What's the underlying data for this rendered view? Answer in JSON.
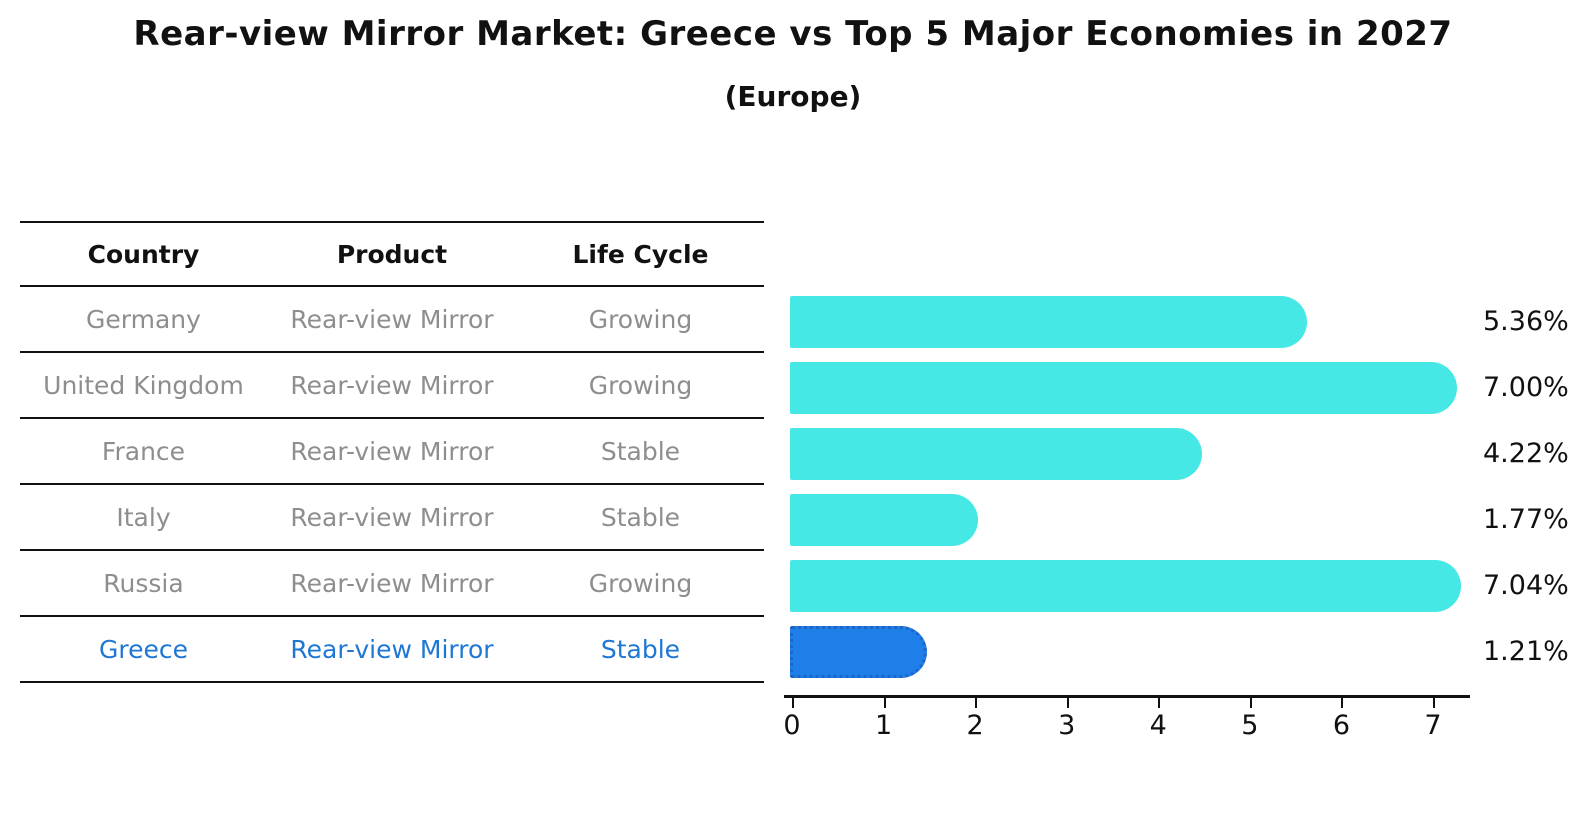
{
  "title": "Rear-view Mirror Market: Greece vs Top 5 Major Economies in 2027",
  "subtitle": "(Europe)",
  "table": {
    "headers": [
      "Country",
      "Product",
      "Life Cycle"
    ],
    "rows": [
      {
        "country": "Germany",
        "product": "Rear-view Mirror",
        "life_cycle": "Growing",
        "highlight": false
      },
      {
        "country": "United Kingdom",
        "product": "Rear-view Mirror",
        "life_cycle": "Growing",
        "highlight": false
      },
      {
        "country": "France",
        "product": "Rear-view Mirror",
        "life_cycle": "Stable",
        "highlight": false
      },
      {
        "country": "Italy",
        "product": "Rear-view Mirror",
        "life_cycle": "Stable",
        "highlight": false
      },
      {
        "country": "Russia",
        "product": "Rear-view Mirror",
        "life_cycle": "Growing",
        "highlight": false
      },
      {
        "country": "Greece",
        "product": "Rear-view Mirror",
        "life_cycle": "Stable",
        "highlight": true
      }
    ]
  },
  "chart_data": {
    "type": "bar",
    "orientation": "horizontal",
    "title": "Rear-view Mirror Market: Greece vs Top 5 Major Economies in 2027 (Europe)",
    "categories": [
      "Germany",
      "United Kingdom",
      "France",
      "Italy",
      "Russia",
      "Greece"
    ],
    "values": [
      5.36,
      7.0,
      4.22,
      1.77,
      7.04,
      1.21
    ],
    "value_labels": [
      "5.36%",
      "7.00%",
      "4.22%",
      "1.77%",
      "7.04%",
      "1.21%"
    ],
    "x_ticks": [
      "0",
      "1",
      "2",
      "3",
      "4",
      "5",
      "6",
      "7"
    ],
    "xlim": [
      0,
      7.3
    ],
    "grid": false,
    "legend": false,
    "highlight_index": 5,
    "bar_color": "#45e8e4",
    "highlight_bar_color": "#1f7fe8",
    "highlight_text_color": "#1f77d4",
    "label_color": "#111111",
    "row_text_color": "#8e8e8e"
  }
}
